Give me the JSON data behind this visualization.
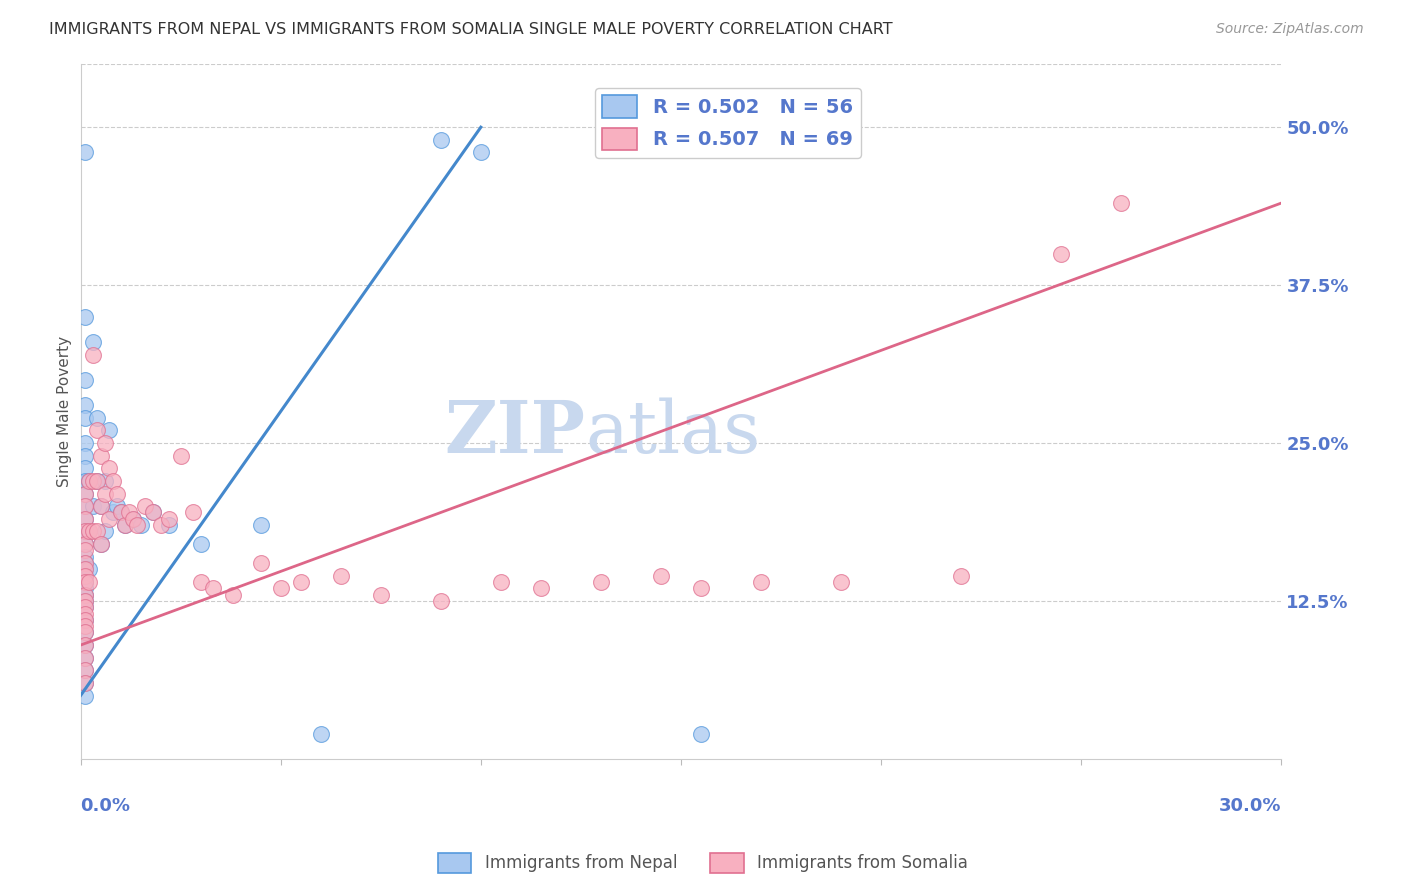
{
  "title": "IMMIGRANTS FROM NEPAL VS IMMIGRANTS FROM SOMALIA SINGLE MALE POVERTY CORRELATION CHART",
  "source": "Source: ZipAtlas.com",
  "ylabel": "Single Male Poverty",
  "right_yticks": [
    "50.0%",
    "37.5%",
    "25.0%",
    "12.5%"
  ],
  "right_ytick_vals": [
    0.5,
    0.375,
    0.25,
    0.125
  ],
  "legend1_r": "R = 0.502",
  "legend1_n": "N = 56",
  "legend2_r": "R = 0.507",
  "legend2_n": "N = 69",
  "nepal_face_color": "#a8c8f0",
  "nepal_edge_color": "#5599dd",
  "somalia_face_color": "#f8b0c0",
  "somalia_edge_color": "#e07090",
  "nepal_line_color": "#4488cc",
  "somalia_line_color": "#dd6688",
  "watermark_color": "#c8d8ee",
  "background_color": "#ffffff",
  "title_color": "#333333",
  "axis_label_color": "#5577cc",
  "legend_text_color": "#5577cc",
  "bottom_legend_color": "#555555",
  "xlim": [
    0.0,
    0.3
  ],
  "ylim": [
    0.0,
    0.55
  ],
  "nepal_line_x": [
    0.0,
    0.1
  ],
  "nepal_line_y": [
    0.05,
    0.5
  ],
  "somalia_line_x": [
    0.0,
    0.3
  ],
  "somalia_line_y": [
    0.09,
    0.44
  ],
  "nepal_points": [
    [
      0.001,
      0.48
    ],
    [
      0.001,
      0.35
    ],
    [
      0.001,
      0.3
    ],
    [
      0.001,
      0.28
    ],
    [
      0.001,
      0.27
    ],
    [
      0.001,
      0.25
    ],
    [
      0.001,
      0.24
    ],
    [
      0.001,
      0.23
    ],
    [
      0.001,
      0.22
    ],
    [
      0.001,
      0.21
    ],
    [
      0.001,
      0.2
    ],
    [
      0.001,
      0.19
    ],
    [
      0.001,
      0.18
    ],
    [
      0.001,
      0.17
    ],
    [
      0.001,
      0.16
    ],
    [
      0.001,
      0.155
    ],
    [
      0.001,
      0.15
    ],
    [
      0.001,
      0.145
    ],
    [
      0.001,
      0.14
    ],
    [
      0.001,
      0.135
    ],
    [
      0.001,
      0.13
    ],
    [
      0.001,
      0.125
    ],
    [
      0.001,
      0.12
    ],
    [
      0.001,
      0.11
    ],
    [
      0.001,
      0.1
    ],
    [
      0.001,
      0.09
    ],
    [
      0.001,
      0.08
    ],
    [
      0.001,
      0.07
    ],
    [
      0.001,
      0.06
    ],
    [
      0.001,
      0.05
    ],
    [
      0.002,
      0.22
    ],
    [
      0.002,
      0.18
    ],
    [
      0.002,
      0.15
    ],
    [
      0.003,
      0.33
    ],
    [
      0.003,
      0.2
    ],
    [
      0.004,
      0.27
    ],
    [
      0.004,
      0.22
    ],
    [
      0.005,
      0.2
    ],
    [
      0.005,
      0.17
    ],
    [
      0.006,
      0.22
    ],
    [
      0.006,
      0.18
    ],
    [
      0.007,
      0.26
    ],
    [
      0.008,
      0.195
    ],
    [
      0.009,
      0.2
    ],
    [
      0.01,
      0.195
    ],
    [
      0.011,
      0.185
    ],
    [
      0.013,
      0.19
    ],
    [
      0.015,
      0.185
    ],
    [
      0.018,
      0.195
    ],
    [
      0.022,
      0.185
    ],
    [
      0.03,
      0.17
    ],
    [
      0.045,
      0.185
    ],
    [
      0.06,
      0.02
    ],
    [
      0.09,
      0.49
    ],
    [
      0.1,
      0.48
    ],
    [
      0.155,
      0.02
    ]
  ],
  "somalia_points": [
    [
      0.001,
      0.21
    ],
    [
      0.001,
      0.2
    ],
    [
      0.001,
      0.19
    ],
    [
      0.001,
      0.18
    ],
    [
      0.001,
      0.17
    ],
    [
      0.001,
      0.165
    ],
    [
      0.001,
      0.155
    ],
    [
      0.001,
      0.15
    ],
    [
      0.001,
      0.145
    ],
    [
      0.001,
      0.14
    ],
    [
      0.001,
      0.13
    ],
    [
      0.001,
      0.125
    ],
    [
      0.001,
      0.12
    ],
    [
      0.001,
      0.115
    ],
    [
      0.001,
      0.11
    ],
    [
      0.001,
      0.105
    ],
    [
      0.001,
      0.1
    ],
    [
      0.001,
      0.09
    ],
    [
      0.001,
      0.08
    ],
    [
      0.001,
      0.07
    ],
    [
      0.001,
      0.06
    ],
    [
      0.002,
      0.22
    ],
    [
      0.002,
      0.18
    ],
    [
      0.002,
      0.14
    ],
    [
      0.003,
      0.32
    ],
    [
      0.003,
      0.22
    ],
    [
      0.003,
      0.18
    ],
    [
      0.004,
      0.26
    ],
    [
      0.004,
      0.22
    ],
    [
      0.004,
      0.18
    ],
    [
      0.005,
      0.24
    ],
    [
      0.005,
      0.2
    ],
    [
      0.005,
      0.17
    ],
    [
      0.006,
      0.25
    ],
    [
      0.006,
      0.21
    ],
    [
      0.007,
      0.23
    ],
    [
      0.007,
      0.19
    ],
    [
      0.008,
      0.22
    ],
    [
      0.009,
      0.21
    ],
    [
      0.01,
      0.195
    ],
    [
      0.011,
      0.185
    ],
    [
      0.012,
      0.195
    ],
    [
      0.013,
      0.19
    ],
    [
      0.014,
      0.185
    ],
    [
      0.016,
      0.2
    ],
    [
      0.018,
      0.195
    ],
    [
      0.02,
      0.185
    ],
    [
      0.022,
      0.19
    ],
    [
      0.025,
      0.24
    ],
    [
      0.028,
      0.195
    ],
    [
      0.03,
      0.14
    ],
    [
      0.033,
      0.135
    ],
    [
      0.038,
      0.13
    ],
    [
      0.045,
      0.155
    ],
    [
      0.05,
      0.135
    ],
    [
      0.055,
      0.14
    ],
    [
      0.065,
      0.145
    ],
    [
      0.075,
      0.13
    ],
    [
      0.09,
      0.125
    ],
    [
      0.105,
      0.14
    ],
    [
      0.115,
      0.135
    ],
    [
      0.13,
      0.14
    ],
    [
      0.145,
      0.145
    ],
    [
      0.155,
      0.135
    ],
    [
      0.17,
      0.14
    ],
    [
      0.19,
      0.14
    ],
    [
      0.22,
      0.145
    ],
    [
      0.245,
      0.4
    ],
    [
      0.26,
      0.44
    ]
  ]
}
